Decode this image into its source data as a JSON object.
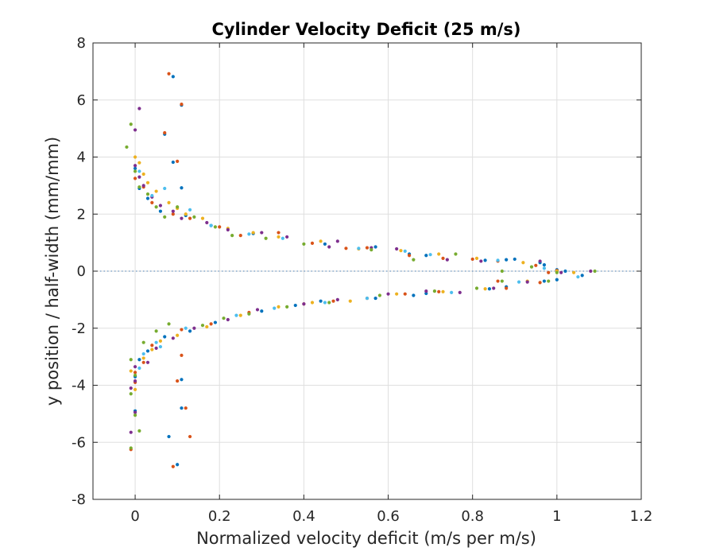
{
  "chart_data": {
    "type": "scatter",
    "title": "Cylinder Velocity Deficit (25 m/s)",
    "xlabel": "Normalized velocity deficit (m/s per m/s)",
    "ylabel": "y position / half-width (mm/mm)",
    "xlim": [
      -0.1,
      1.2
    ],
    "ylim": [
      -8,
      8
    ],
    "xticks": [
      0,
      0.2,
      0.4,
      0.6,
      0.8,
      1,
      1.2
    ],
    "xtick_labels": [
      "0",
      "0.2",
      "0.4",
      "0.6",
      "0.8",
      "1",
      "1.2"
    ],
    "yticks": [
      -8,
      -6,
      -4,
      -2,
      0,
      2,
      4,
      6,
      8
    ],
    "ytick_labels": [
      "-8",
      "-6",
      "-4",
      "-2",
      "0",
      "2",
      "4",
      "6",
      "8"
    ],
    "grid": true,
    "reference_line": {
      "y": 0,
      "style": "dotted",
      "color": "#4a7fb5"
    },
    "colors": [
      "#0072BD",
      "#D95319",
      "#EDB120",
      "#7E2F8E",
      "#77AC30",
      "#4DBEEE",
      "#A2142F"
    ],
    "series": [
      {
        "color": "#0072BD",
        "points": [
          [
            0.09,
            6.82
          ],
          [
            0.11,
            5.82
          ],
          [
            0.07,
            4.8
          ],
          [
            0.09,
            3.82
          ],
          [
            0.11,
            2.92
          ],
          [
            0.0,
            3.6
          ],
          [
            0.01,
            2.9
          ],
          [
            0.03,
            2.55
          ],
          [
            0.06,
            2.1
          ],
          [
            0.12,
            1.95
          ],
          [
            0.18,
            1.6
          ],
          [
            0.28,
            1.32
          ],
          [
            0.45,
            0.95
          ],
          [
            0.57,
            0.85
          ],
          [
            0.65,
            0.6
          ],
          [
            0.69,
            0.55
          ],
          [
            0.83,
            0.38
          ],
          [
            0.88,
            0.4
          ],
          [
            0.9,
            0.42
          ],
          [
            0.96,
            0.3
          ],
          [
            0.97,
            0.22
          ],
          [
            1.0,
            0.05
          ],
          [
            1.02,
            0.0
          ],
          [
            1.06,
            -0.15
          ],
          [
            1.0,
            -0.3
          ],
          [
            0.97,
            -0.35
          ],
          [
            0.88,
            -0.55
          ],
          [
            0.84,
            -0.62
          ],
          [
            0.66,
            -0.85
          ],
          [
            0.69,
            -0.78
          ],
          [
            0.57,
            -0.95
          ],
          [
            0.44,
            -1.05
          ],
          [
            0.38,
            -1.2
          ],
          [
            0.3,
            -1.4
          ],
          [
            0.19,
            -1.8
          ],
          [
            0.13,
            -2.1
          ],
          [
            0.07,
            -2.3
          ],
          [
            0.03,
            -2.8
          ],
          [
            0.01,
            -3.1
          ],
          [
            0.0,
            -3.7
          ],
          [
            0.0,
            -4.9
          ],
          [
            0.11,
            -3.8
          ],
          [
            0.11,
            -4.8
          ],
          [
            0.08,
            -5.8
          ],
          [
            0.1,
            -6.78
          ]
        ]
      },
      {
        "color": "#D95319",
        "points": [
          [
            0.08,
            6.92
          ],
          [
            0.11,
            5.85
          ],
          [
            0.07,
            4.85
          ],
          [
            0.1,
            3.85
          ],
          [
            0.0,
            3.25
          ],
          [
            0.02,
            2.95
          ],
          [
            0.04,
            2.4
          ],
          [
            0.09,
            2.0
          ],
          [
            0.13,
            1.85
          ],
          [
            0.2,
            1.55
          ],
          [
            0.25,
            1.25
          ],
          [
            0.34,
            1.35
          ],
          [
            0.42,
            0.98
          ],
          [
            0.5,
            0.8
          ],
          [
            0.55,
            0.82
          ],
          [
            0.65,
            0.55
          ],
          [
            0.73,
            0.45
          ],
          [
            0.8,
            0.42
          ],
          [
            0.86,
            0.35
          ],
          [
            0.95,
            0.2
          ],
          [
            1.0,
            0.02
          ],
          [
            0.98,
            -0.05
          ],
          [
            0.96,
            -0.4
          ],
          [
            0.88,
            -0.6
          ],
          [
            0.86,
            -0.35
          ],
          [
            0.72,
            -0.72
          ],
          [
            0.64,
            -0.8
          ],
          [
            0.55,
            -0.95
          ],
          [
            0.47,
            -1.05
          ],
          [
            0.4,
            -1.15
          ],
          [
            0.27,
            -1.45
          ],
          [
            0.18,
            -1.85
          ],
          [
            0.11,
            -2.05
          ],
          [
            0.04,
            -2.6
          ],
          [
            0.02,
            -3.2
          ],
          [
            0.0,
            -3.55
          ],
          [
            0.11,
            -2.95
          ],
          [
            0.1,
            -3.85
          ],
          [
            0.12,
            -4.8
          ],
          [
            0.13,
            -5.8
          ],
          [
            0.09,
            -6.85
          ],
          [
            -0.01,
            -6.25
          ],
          [
            0.0,
            -3.9
          ]
        ]
      },
      {
        "color": "#EDB120",
        "points": [
          [
            0.0,
            4.0
          ],
          [
            0.01,
            3.8
          ],
          [
            0.02,
            3.4
          ],
          [
            0.03,
            3.1
          ],
          [
            0.05,
            2.8
          ],
          [
            0.08,
            2.4
          ],
          [
            0.1,
            2.2
          ],
          [
            0.12,
            2.0
          ],
          [
            0.16,
            1.85
          ],
          [
            0.22,
            1.5
          ],
          [
            0.28,
            1.35
          ],
          [
            0.34,
            1.2
          ],
          [
            0.44,
            1.05
          ],
          [
            0.53,
            0.78
          ],
          [
            0.63,
            0.72
          ],
          [
            0.72,
            0.6
          ],
          [
            0.81,
            0.45
          ],
          [
            0.92,
            0.3
          ],
          [
            1.0,
            0.0
          ],
          [
            1.04,
            -0.05
          ],
          [
            0.93,
            -0.35
          ],
          [
            0.83,
            -0.62
          ],
          [
            0.73,
            -0.72
          ],
          [
            0.62,
            -0.8
          ],
          [
            0.51,
            -1.05
          ],
          [
            0.42,
            -1.1
          ],
          [
            0.34,
            -1.25
          ],
          [
            0.25,
            -1.55
          ],
          [
            0.17,
            -1.95
          ],
          [
            0.1,
            -2.25
          ],
          [
            0.06,
            -2.45
          ],
          [
            0.04,
            -2.75
          ],
          [
            0.02,
            -3.05
          ],
          [
            -0.01,
            -3.5
          ],
          [
            0.0,
            -4.15
          ]
        ]
      },
      {
        "color": "#7E2F8E",
        "points": [
          [
            0.01,
            5.7
          ],
          [
            0.0,
            4.95
          ],
          [
            0.0,
            3.7
          ],
          [
            0.01,
            3.3
          ],
          [
            0.02,
            3.0
          ],
          [
            0.04,
            2.6
          ],
          [
            0.06,
            2.3
          ],
          [
            0.09,
            2.1
          ],
          [
            0.11,
            1.85
          ],
          [
            0.17,
            1.7
          ],
          [
            0.22,
            1.45
          ],
          [
            0.3,
            1.35
          ],
          [
            0.36,
            1.2
          ],
          [
            0.46,
            0.85
          ],
          [
            0.48,
            1.05
          ],
          [
            0.56,
            0.82
          ],
          [
            0.62,
            0.78
          ],
          [
            0.74,
            0.4
          ],
          [
            0.82,
            0.35
          ],
          [
            0.96,
            0.35
          ],
          [
            1.01,
            -0.05
          ],
          [
            1.08,
            0.0
          ],
          [
            0.93,
            -0.38
          ],
          [
            0.85,
            -0.6
          ],
          [
            0.77,
            -0.75
          ],
          [
            0.69,
            -0.7
          ],
          [
            0.6,
            -0.8
          ],
          [
            0.48,
            -1.0
          ],
          [
            0.4,
            -1.15
          ],
          [
            0.29,
            -1.35
          ],
          [
            0.22,
            -1.7
          ],
          [
            0.14,
            -2.0
          ],
          [
            0.09,
            -2.35
          ],
          [
            0.05,
            -2.7
          ],
          [
            0.03,
            -3.2
          ],
          [
            0.0,
            -3.85
          ],
          [
            -0.01,
            -5.65
          ],
          [
            0.0,
            -4.95
          ],
          [
            -0.01,
            -4.1
          ],
          [
            0.0,
            -3.35
          ]
        ]
      },
      {
        "color": "#77AC30",
        "points": [
          [
            -0.02,
            4.35
          ],
          [
            -0.01,
            5.15
          ],
          [
            0.0,
            3.5
          ],
          [
            0.01,
            2.95
          ],
          [
            0.03,
            2.7
          ],
          [
            0.05,
            2.25
          ],
          [
            0.07,
            1.9
          ],
          [
            0.1,
            2.25
          ],
          [
            0.14,
            1.9
          ],
          [
            0.19,
            1.55
          ],
          [
            0.23,
            1.25
          ],
          [
            0.31,
            1.15
          ],
          [
            0.4,
            0.95
          ],
          [
            0.56,
            0.75
          ],
          [
            0.66,
            0.4
          ],
          [
            0.76,
            0.6
          ],
          [
            0.87,
            0.0
          ],
          [
            0.94,
            0.15
          ],
          [
            1.0,
            -0.05
          ],
          [
            1.09,
            0.0
          ],
          [
            0.98,
            -0.35
          ],
          [
            0.87,
            -0.35
          ],
          [
            0.81,
            -0.6
          ],
          [
            0.71,
            -0.7
          ],
          [
            0.58,
            -0.85
          ],
          [
            0.46,
            -1.1
          ],
          [
            0.36,
            -1.25
          ],
          [
            0.27,
            -1.5
          ],
          [
            0.21,
            -1.65
          ],
          [
            0.16,
            -1.9
          ],
          [
            0.08,
            -1.85
          ],
          [
            0.05,
            -2.1
          ],
          [
            0.02,
            -2.5
          ],
          [
            0.0,
            -3.65
          ],
          [
            -0.01,
            -4.3
          ],
          [
            0.0,
            -5.05
          ],
          [
            0.01,
            -5.6
          ],
          [
            -0.01,
            -6.2
          ],
          [
            -0.01,
            -3.1
          ]
        ]
      },
      {
        "color": "#4DBEEE",
        "points": [
          [
            0.01,
            3.5
          ],
          [
            0.04,
            2.65
          ],
          [
            0.07,
            2.9
          ],
          [
            0.13,
            2.15
          ],
          [
            0.18,
            1.6
          ],
          [
            0.27,
            1.3
          ],
          [
            0.35,
            1.15
          ],
          [
            0.53,
            0.8
          ],
          [
            0.64,
            0.7
          ],
          [
            0.7,
            0.58
          ],
          [
            0.86,
            0.38
          ],
          [
            0.97,
            0.1
          ],
          [
            1.05,
            -0.2
          ],
          [
            0.91,
            -0.38
          ],
          [
            0.75,
            -0.75
          ],
          [
            0.55,
            -0.95
          ],
          [
            0.45,
            -1.1
          ],
          [
            0.33,
            -1.3
          ],
          [
            0.24,
            -1.55
          ],
          [
            0.12,
            -2.0
          ],
          [
            0.05,
            -2.5
          ],
          [
            0.02,
            -2.9
          ],
          [
            0.01,
            -3.4
          ],
          [
            0.06,
            -2.65
          ]
        ]
      }
    ]
  }
}
